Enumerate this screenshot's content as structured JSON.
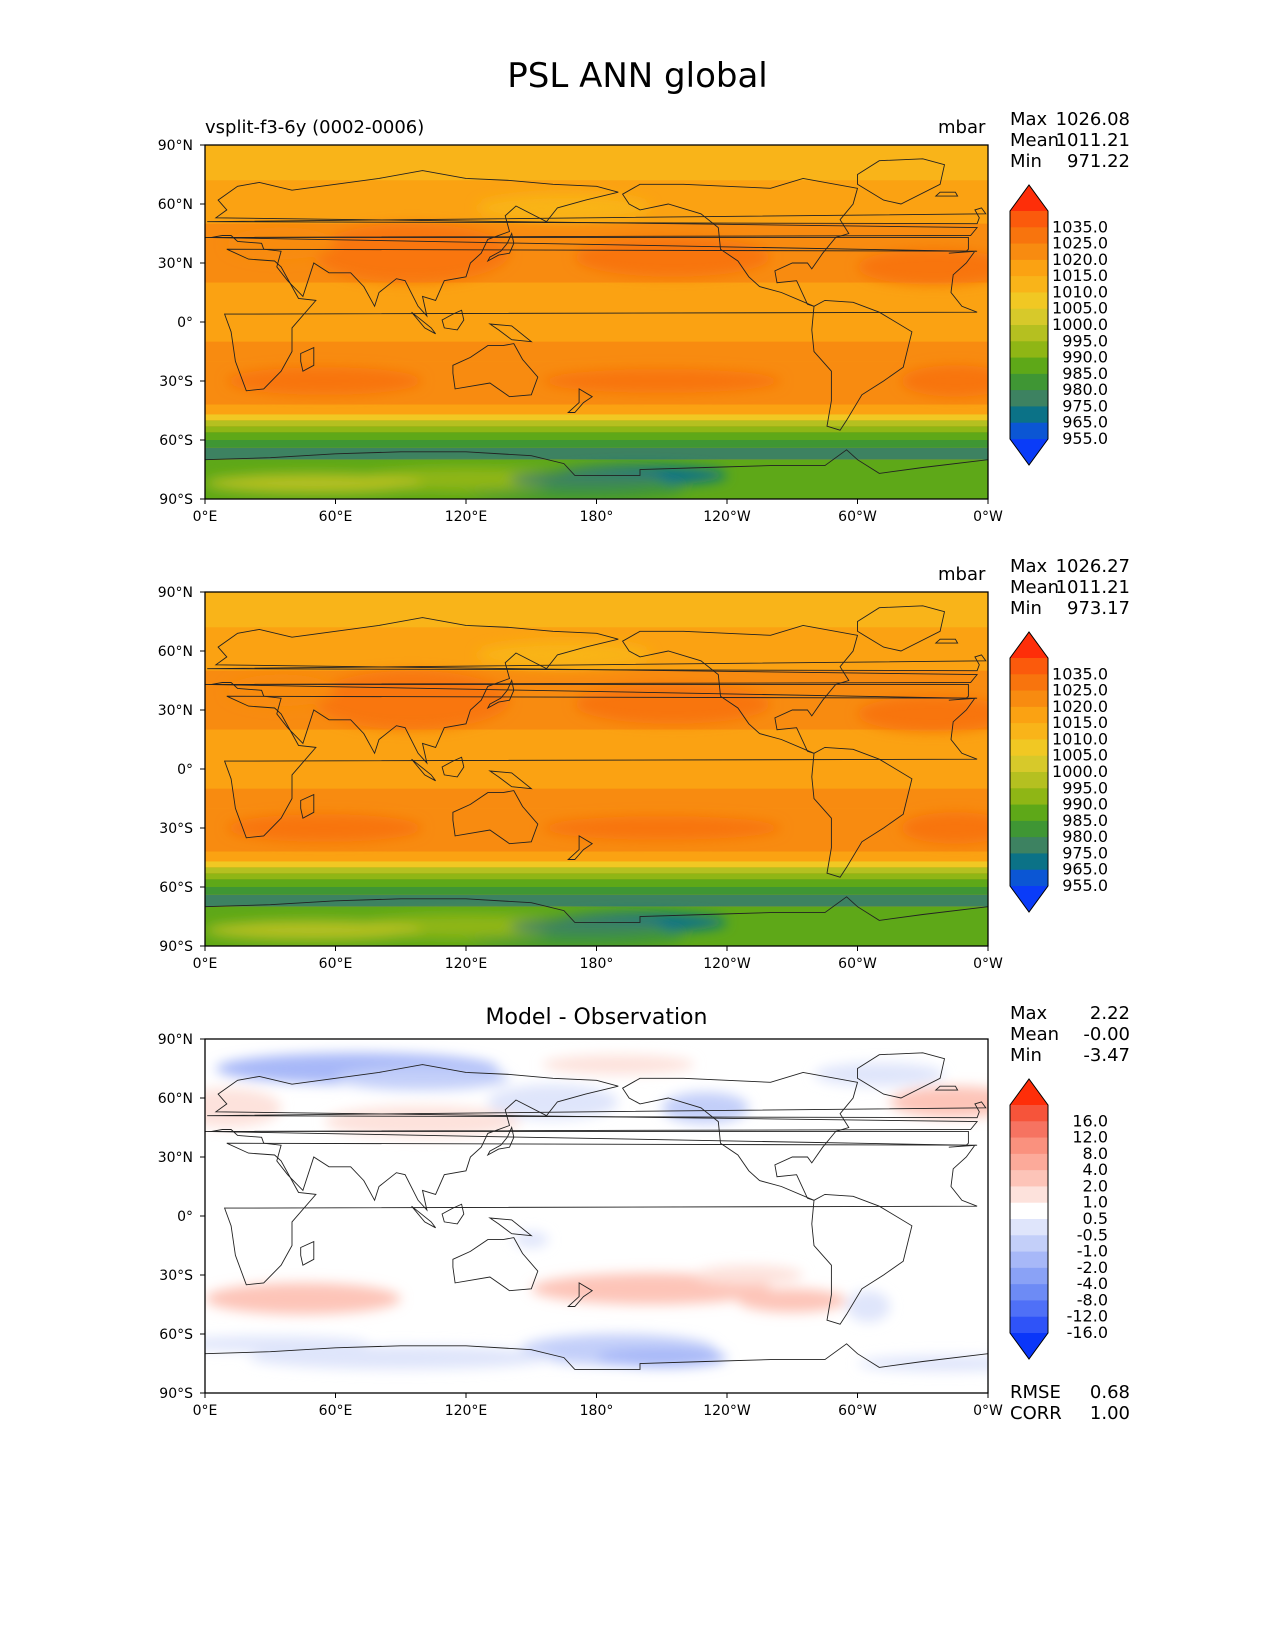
{
  "title": "PSL ANN global",
  "panels": [
    {
      "subtitle": "vsplit-f3-6y (0002-0006)",
      "units": "mbar",
      "center_title": "",
      "stats": [
        {
          "label": "Max",
          "value": "1026.08"
        },
        {
          "label": "Mean",
          "value": "1011.21"
        },
        {
          "label": "Min",
          "value": "971.22"
        }
      ],
      "colorbar": {
        "labels": [
          "1035.0",
          "1025.0",
          "1020.0",
          "1015.0",
          "1010.0",
          "1005.0",
          "1000.0",
          "995.0",
          "990.0",
          "985.0",
          "980.0",
          "975.0",
          "965.0",
          "955.0"
        ],
        "colors": [
          "#fe2e09",
          "#fb5a0c",
          "#f8740d",
          "#f88b10",
          "#fba212",
          "#f9b419",
          "#f1c823",
          "#d7c92a",
          "#b5c020",
          "#8fb615",
          "#5ea818",
          "#3f9634",
          "#3d8261",
          "#0b7287",
          "#0b56d4",
          "#0a3cf8"
        ],
        "extend": "both"
      },
      "bottom_stats": [],
      "chart_data": {
        "type": "contour map",
        "xlim": [
          0,
          360
        ],
        "ylim": [
          -90,
          90
        ],
        "xticks": [
          "0°E",
          "60°E",
          "120°E",
          "180°",
          "120°W",
          "60°W",
          "0°W"
        ],
        "yticks": [
          "90°N",
          "60°N",
          "30°N",
          "0°",
          "30°S",
          "60°S",
          "90°S"
        ]
      }
    },
    {
      "subtitle": "",
      "units": "mbar",
      "center_title": "",
      "stats": [
        {
          "label": "Max",
          "value": "1026.27"
        },
        {
          "label": "Mean",
          "value": "1011.21"
        },
        {
          "label": "Min",
          "value": "973.17"
        }
      ],
      "colorbar": {
        "labels": [
          "1035.0",
          "1025.0",
          "1020.0",
          "1015.0",
          "1010.0",
          "1005.0",
          "1000.0",
          "995.0",
          "990.0",
          "985.0",
          "980.0",
          "975.0",
          "965.0",
          "955.0"
        ],
        "colors": [
          "#fe2e09",
          "#fb5a0c",
          "#f8740d",
          "#f88b10",
          "#fba212",
          "#f9b419",
          "#f1c823",
          "#d7c92a",
          "#b5c020",
          "#8fb615",
          "#5ea818",
          "#3f9634",
          "#3d8261",
          "#0b7287",
          "#0b56d4",
          "#0a3cf8"
        ],
        "extend": "both"
      },
      "bottom_stats": [],
      "chart_data": {
        "type": "contour map",
        "xlim": [
          0,
          360
        ],
        "ylim": [
          -90,
          90
        ],
        "xticks": [
          "0°E",
          "60°E",
          "120°E",
          "180°",
          "120°W",
          "60°W",
          "0°W"
        ],
        "yticks": [
          "90°N",
          "60°N",
          "30°N",
          "0°",
          "30°S",
          "60°S",
          "90°S"
        ]
      }
    },
    {
      "subtitle": "",
      "units": "",
      "center_title": "Model - Observation",
      "stats": [
        {
          "label": "Max",
          "value": "2.22"
        },
        {
          "label": "Mean",
          "value": "-0.00"
        },
        {
          "label": "Min",
          "value": "-3.47"
        }
      ],
      "colorbar": {
        "labels": [
          "16.0",
          "12.0",
          "8.0",
          "4.0",
          "2.0",
          "1.0",
          "0.5",
          "-0.5",
          "-1.0",
          "-2.0",
          "-4.0",
          "-8.0",
          "-12.0",
          "-16.0"
        ],
        "colors": [
          "#fe2e09",
          "#f6543a",
          "#f67361",
          "#fa917e",
          "#fcaa9a",
          "#fdc4b8",
          "#fde2dc",
          "#ffffff",
          "#dfe5fb",
          "#c3cff9",
          "#a7b8f8",
          "#8aa2f6",
          "#6d8bf5",
          "#4f70f7",
          "#2f53f8",
          "#0a36f9"
        ],
        "extend": "both"
      },
      "bottom_stats": [
        {
          "label": "RMSE",
          "value": "0.68"
        },
        {
          "label": "CORR",
          "value": "1.00"
        }
      ],
      "chart_data": {
        "type": "contour map",
        "xlim": [
          0,
          360
        ],
        "ylim": [
          -90,
          90
        ],
        "xticks": [
          "0°E",
          "60°E",
          "120°E",
          "180°",
          "120°W",
          "60°W",
          "0°W"
        ],
        "yticks": [
          "90°N",
          "60°N",
          "30°N",
          "0°",
          "30°S",
          "60°S",
          "90°S"
        ]
      }
    }
  ]
}
